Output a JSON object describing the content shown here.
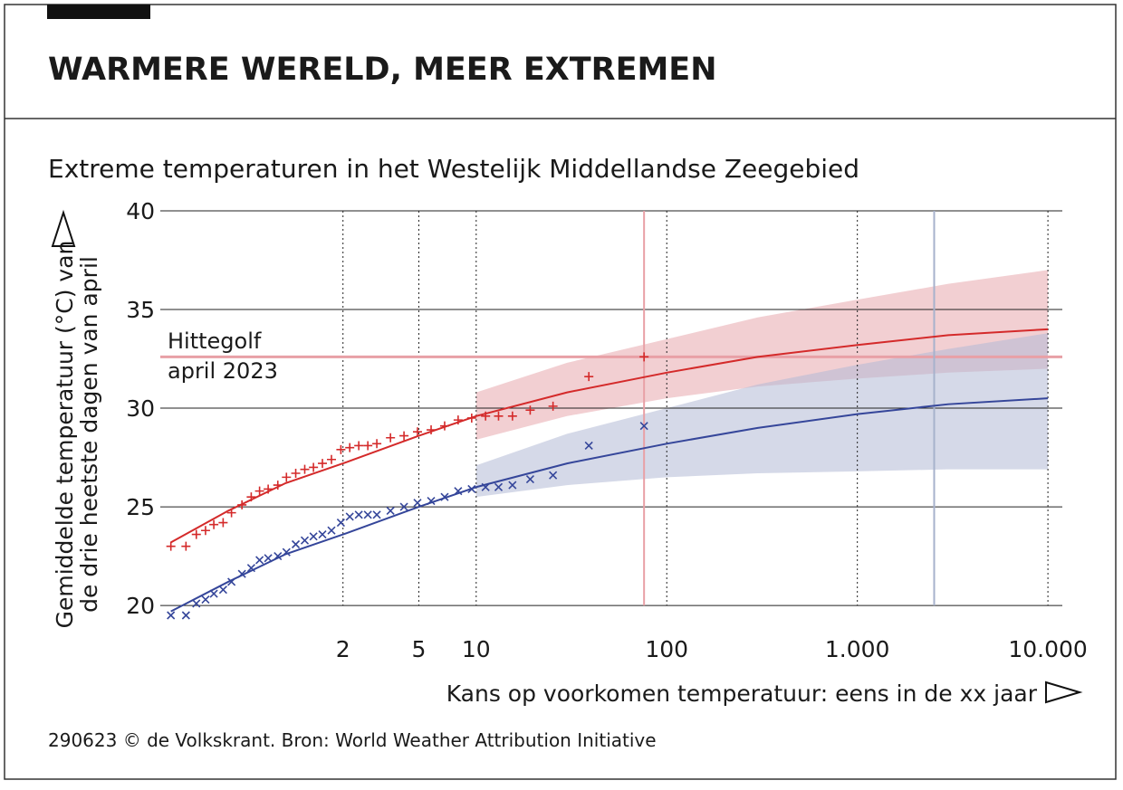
{
  "chart_data": {
    "type": "scatter",
    "title": "WARMERE WERELD, MEER EXTREMEN",
    "subtitle": "Extreme temperaturen in het Westelijk Middellandse Zeegebied",
    "y_label": [
      "Gemiddelde temperatuur (°C) van",
      "de drie heetste dagen van april"
    ],
    "x_label": "Kans op voorkomen temperatuur: eens in de xx jaar",
    "source": "290623 © de Volkskrant. Bron: World Weather Attribution Initiative",
    "log_x": true,
    "xlim": [
      0.22,
      11900
    ],
    "ylim": [
      19.5,
      40
    ],
    "xticks": [
      2,
      5,
      10,
      100,
      {
        "value": 1000,
        "label": "1.000"
      },
      {
        "value": 10000,
        "label": "10.000"
      }
    ],
    "yticks": [
      20,
      25,
      30,
      35,
      40
    ],
    "series": [
      {
        "color": "#d42a2a",
        "marker": "plus",
        "x": [
          0.25,
          0.3,
          0.34,
          0.38,
          0.42,
          0.47,
          0.52,
          0.59,
          0.66,
          0.73,
          0.81,
          0.91,
          1.01,
          1.13,
          1.26,
          1.4,
          1.56,
          1.74,
          1.95,
          2.17,
          2.42,
          2.7,
          3.01,
          3.55,
          4.18,
          4.92,
          5.8,
          6.83,
          8.04,
          9.47,
          11.2,
          13.1,
          15.5,
          19.2,
          25.3,
          39,
          76
        ],
        "values": [
          23.0,
          23.0,
          23.6,
          23.8,
          24.1,
          24.2,
          24.7,
          25.1,
          25.5,
          25.8,
          25.9,
          26.1,
          26.5,
          26.7,
          26.9,
          27.0,
          27.2,
          27.4,
          27.9,
          28.0,
          28.1,
          28.1,
          28.2,
          28.5,
          28.6,
          28.8,
          28.9,
          29.1,
          29.4,
          29.5,
          29.6,
          29.6,
          29.6,
          29.9,
          30.1,
          31.6,
          32.6
        ]
      },
      {
        "color": "#35469a",
        "marker": "cross",
        "x": [
          0.25,
          0.3,
          0.34,
          0.38,
          0.42,
          0.47,
          0.52,
          0.59,
          0.66,
          0.73,
          0.81,
          0.91,
          1.01,
          1.13,
          1.26,
          1.4,
          1.56,
          1.74,
          1.95,
          2.17,
          2.42,
          2.7,
          3.01,
          3.55,
          4.18,
          4.92,
          5.8,
          6.83,
          8.04,
          9.47,
          11.2,
          13.1,
          15.5,
          19.2,
          25.3,
          39,
          76
        ],
        "values": [
          19.5,
          19.5,
          20.1,
          20.3,
          20.6,
          20.8,
          21.2,
          21.6,
          21.9,
          22.3,
          22.4,
          22.5,
          22.7,
          23.1,
          23.3,
          23.5,
          23.6,
          23.8,
          24.2,
          24.5,
          24.6,
          24.6,
          24.6,
          24.8,
          25.0,
          25.2,
          25.3,
          25.5,
          25.8,
          25.9,
          26.0,
          26.0,
          26.1,
          26.4,
          26.6,
          28.1,
          29.1
        ]
      }
    ],
    "fits": [
      {
        "color": "#d42a2a",
        "x": [
          0.25,
          0.5,
          1,
          2,
          5,
          10,
          30,
          100,
          300,
          1000,
          3000,
          10000
        ],
        "values": [
          23.2,
          24.8,
          26.2,
          27.2,
          28.6,
          29.6,
          30.8,
          31.8,
          32.6,
          33.2,
          33.7,
          34.0
        ]
      },
      {
        "color": "#35469a",
        "x": [
          0.25,
          0.5,
          1,
          2,
          5,
          10,
          30,
          100,
          300,
          1000,
          3000,
          10000
        ],
        "values": [
          19.7,
          21.2,
          22.6,
          23.6,
          25.0,
          26.0,
          27.2,
          28.2,
          29.0,
          29.7,
          30.2,
          30.5
        ]
      }
    ],
    "bands": [
      {
        "color": "#e8a7ad",
        "x": [
          10,
          30,
          100,
          300,
          1000,
          3000,
          10000
        ],
        "lower": [
          28.4,
          29.6,
          30.5,
          31.1,
          31.5,
          31.8,
          32.0
        ],
        "upper": [
          30.8,
          32.3,
          33.5,
          34.6,
          35.5,
          36.3,
          37.0
        ]
      },
      {
        "color": "#b3bad6",
        "x": [
          10,
          30,
          100,
          300,
          1000,
          3000,
          10000
        ],
        "lower": [
          25.5,
          26.1,
          26.5,
          26.7,
          26.8,
          26.9,
          26.9
        ],
        "upper": [
          27.1,
          28.7,
          30.0,
          31.2,
          32.2,
          33.0,
          33.8
        ]
      }
    ],
    "hline": {
      "value": 32.6,
      "color": "#e8a0a6",
      "label": [
        "Hittegolf",
        "april 2023"
      ]
    },
    "vlines": [
      {
        "value": 76,
        "color": "#e8a0a6"
      },
      {
        "value": 2530,
        "color": "#a7b2cc"
      }
    ]
  }
}
